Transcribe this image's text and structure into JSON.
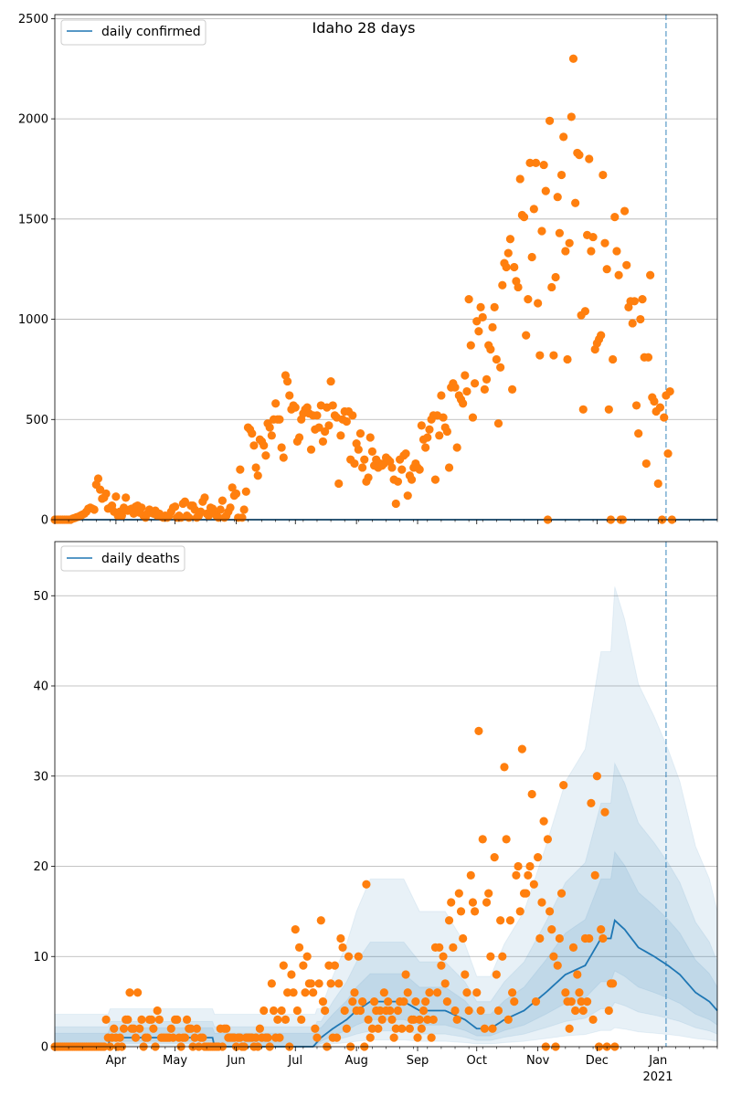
{
  "chart_data": [
    {
      "type": "scatter",
      "title": "Idaho 28 days",
      "xlabel": "",
      "ylabel": "",
      "ylim": [
        0,
        2520
      ],
      "yticks": [
        0,
        500,
        1000,
        1500,
        2000,
        2500
      ],
      "grid": "horizontal",
      "legend_position": "top-left",
      "legend": [
        "daily confirmed"
      ],
      "colors": {
        "points": "#ff7f0e",
        "line": "#1f77b4"
      },
      "x_range": [
        "2020-03-01",
        "2021-01-31"
      ],
      "dashed_vline_date": "2021-01-05",
      "series": [
        {
          "name": "daily confirmed",
          "kind": "line",
          "start_date": "2020-03-01",
          "values": [
            0
          ]
        },
        {
          "name": "",
          "kind": "points",
          "start_date": "2020-03-01",
          "values": [
            0,
            0,
            0,
            0,
            0,
            0,
            0,
            0,
            0,
            5,
            8,
            12,
            15,
            20,
            25,
            30,
            40,
            55,
            60,
            55,
            50,
            175,
            205,
            150,
            105,
            110,
            130,
            55,
            60,
            70,
            40,
            115,
            20,
            40,
            20,
            60,
            110,
            45,
            50,
            55,
            30,
            65,
            70,
            35,
            60,
            20,
            10,
            30,
            50,
            40,
            30,
            45,
            20,
            30,
            15,
            10,
            20,
            10,
            20,
            40,
            60,
            65,
            10,
            20,
            10,
            80,
            90,
            20,
            10,
            70,
            70,
            50,
            10,
            20,
            40,
            90,
            110,
            30,
            20,
            60,
            55,
            30,
            20,
            10,
            50,
            95,
            10,
            20,
            40,
            60,
            160,
            120,
            130,
            10,
            250,
            10,
            50,
            140,
            460,
            450,
            430,
            370,
            260,
            220,
            400,
            390,
            370,
            320,
            480,
            460,
            420,
            500,
            580,
            500,
            500,
            360,
            310,
            720,
            690,
            620,
            550,
            570,
            560,
            390,
            410,
            500,
            530,
            550,
            560,
            530,
            350,
            520,
            450,
            520,
            460,
            570,
            390,
            440,
            560,
            470,
            690,
            570,
            520,
            510,
            180,
            420,
            500,
            540,
            490,
            540,
            300,
            520,
            280,
            380,
            350,
            430,
            260,
            300,
            190,
            210,
            410,
            340,
            270,
            300,
            260,
            280,
            270,
            280,
            310,
            300,
            290,
            260,
            200,
            80,
            190,
            300,
            250,
            320,
            330,
            120,
            220,
            200,
            260,
            280,
            260,
            250,
            470,
            400,
            360,
            410,
            450,
            500,
            520,
            200,
            520,
            420,
            620,
            510,
            460,
            440,
            260,
            660,
            680,
            660,
            360,
            620,
            600,
            580,
            720,
            640,
            1100,
            870,
            510,
            680,
            990,
            940,
            1060,
            1010,
            650,
            700,
            870,
            850,
            960,
            1060,
            800,
            480,
            760,
            1170,
            1280,
            1260,
            1330,
            1400,
            650,
            1260,
            1190,
            1160,
            1700,
            1520,
            1510,
            920,
            1100,
            1780,
            1310,
            1550,
            1780,
            1080,
            820,
            1440,
            1770,
            1640,
            0,
            1990,
            1160,
            820,
            1210,
            1610,
            1430,
            1720,
            1910,
            1340,
            800,
            1380,
            2010,
            2300,
            1580,
            1830,
            1820,
            1020,
            550,
            1040,
            1420,
            1800,
            1340,
            1410,
            850,
            880,
            900,
            920,
            1720,
            1380,
            1250,
            550,
            0,
            800,
            1510,
            1340,
            1220,
            0,
            0,
            1540,
            1270,
            1060,
            1090,
            980,
            1090,
            570,
            430,
            1000,
            1100,
            810,
            280,
            810,
            1220,
            610,
            590,
            540,
            180,
            560,
            0,
            510,
            620,
            330,
            640,
            0
          ]
        }
      ]
    },
    {
      "type": "scatter",
      "title": "",
      "xlabel": "",
      "ylabel": "",
      "ylim": [
        0,
        56
      ],
      "yticks": [
        0,
        10,
        20,
        30,
        40,
        50
      ],
      "xticks": [
        "Apr",
        "May",
        "Jun",
        "Jul",
        "Aug",
        "Sep",
        "Oct",
        "Nov",
        "Dec",
        "Jan"
      ],
      "x_secondary_label": "2021",
      "grid": "horizontal",
      "legend_position": "top-left",
      "legend": [
        "daily deaths"
      ],
      "colors": {
        "points": "#ff7f0e",
        "line": "#1f77b4",
        "band": "#1f77b4"
      },
      "x_range": [
        "2020-03-01",
        "2021-01-31"
      ],
      "dashed_vline_date": "2021-01-05",
      "series": [
        {
          "name": "daily deaths",
          "kind": "line",
          "start_date": "2020-03-01",
          "knots": [
            [
              "2020-03-01",
              0
            ],
            [
              "2020-03-28",
              0
            ],
            [
              "2020-03-29",
              1
            ],
            [
              "2020-05-20",
              1
            ],
            [
              "2020-05-21",
              0
            ],
            [
              "2020-07-10",
              0
            ],
            [
              "2020-07-14",
              1
            ],
            [
              "2020-07-20",
              2
            ],
            [
              "2020-07-27",
              3
            ],
            [
              "2020-08-01",
              4
            ],
            [
              "2020-08-08",
              5
            ],
            [
              "2020-08-25",
              5
            ],
            [
              "2020-09-02",
              4
            ],
            [
              "2020-09-15",
              4
            ],
            [
              "2020-09-25",
              3
            ],
            [
              "2020-10-01",
              2
            ],
            [
              "2020-10-08",
              2
            ],
            [
              "2020-10-15",
              3
            ],
            [
              "2020-10-25",
              4
            ],
            [
              "2020-11-05",
              6
            ],
            [
              "2020-11-15",
              8
            ],
            [
              "2020-11-25",
              9
            ],
            [
              "2020-12-03",
              12
            ],
            [
              "2020-12-08",
              12
            ],
            [
              "2020-12-10",
              14
            ],
            [
              "2020-12-15",
              13
            ],
            [
              "2020-12-22",
              11
            ],
            [
              "2020-12-30",
              10
            ],
            [
              "2021-01-06",
              9
            ],
            [
              "2021-01-12",
              8
            ],
            [
              "2021-01-20",
              6
            ],
            [
              "2021-01-27",
              5
            ],
            [
              "2021-01-31",
              4
            ]
          ],
          "bands": [
            {
              "lower": 0.15,
              "upper": 3.6
            },
            {
              "lower": 0.35,
              "upper": 2.2
            },
            {
              "lower": 0.6,
              "upper": 1.5
            }
          ]
        },
        {
          "name": "",
          "kind": "points",
          "start_date": "2020-03-01",
          "values": [
            0,
            0,
            0,
            0,
            0,
            0,
            0,
            0,
            0,
            0,
            0,
            0,
            0,
            0,
            0,
            0,
            0,
            0,
            0,
            0,
            0,
            0,
            0,
            0,
            0,
            0,
            3,
            1,
            0,
            1,
            2,
            1,
            0,
            1,
            0,
            2,
            3,
            3,
            6,
            2,
            2,
            1,
            6,
            2,
            3,
            0,
            1,
            1,
            3,
            3,
            2,
            0,
            4,
            3,
            1,
            1,
            1,
            1,
            1,
            2,
            1,
            3,
            3,
            1,
            0,
            1,
            1,
            3,
            2,
            2,
            0,
            1,
            2,
            0,
            1,
            1,
            0,
            0,
            0,
            0,
            0,
            0,
            0,
            0,
            2,
            0,
            2,
            2,
            1,
            1,
            1,
            1,
            0,
            1,
            1,
            0,
            0,
            1,
            1,
            1,
            1,
            0,
            1,
            0,
            2,
            1,
            4,
            1,
            1,
            0,
            7,
            4,
            1,
            3,
            1,
            4,
            9,
            3,
            6,
            0,
            8,
            6,
            13,
            4,
            11,
            3,
            9,
            6,
            10,
            7,
            7,
            6,
            2,
            1,
            7,
            14,
            5,
            4,
            0,
            9,
            7,
            1,
            9,
            1,
            7,
            12,
            11,
            4,
            2,
            10,
            0,
            5,
            6,
            4,
            10,
            4,
            5,
            0,
            18,
            3,
            1,
            2,
            5,
            4,
            2,
            4,
            3,
            6,
            4,
            5,
            4,
            3,
            1,
            2,
            4,
            5,
            2,
            5,
            8,
            6,
            2,
            3,
            3,
            5,
            1,
            3,
            2,
            4,
            5,
            3,
            6,
            1,
            3,
            11,
            6,
            11,
            9,
            10,
            7,
            5,
            14,
            16,
            11,
            4,
            3,
            17,
            15,
            12,
            8,
            6,
            4,
            19,
            16,
            15,
            6,
            35,
            4,
            23,
            2,
            16,
            17,
            10,
            2,
            21,
            8,
            4,
            14,
            10,
            31,
            23,
            3,
            14,
            6,
            5,
            19,
            20,
            15,
            33,
            17,
            17,
            19,
            20,
            28,
            18,
            5,
            21,
            12,
            16,
            25,
            0,
            23,
            15,
            13,
            10,
            0,
            9,
            12,
            17,
            29,
            6,
            5,
            2,
            5,
            11,
            4,
            8,
            6,
            5,
            4,
            12,
            5,
            12,
            27,
            3,
            19,
            30,
            0,
            13,
            12,
            26,
            0,
            4,
            7,
            7,
            0
          ]
        }
      ]
    }
  ]
}
